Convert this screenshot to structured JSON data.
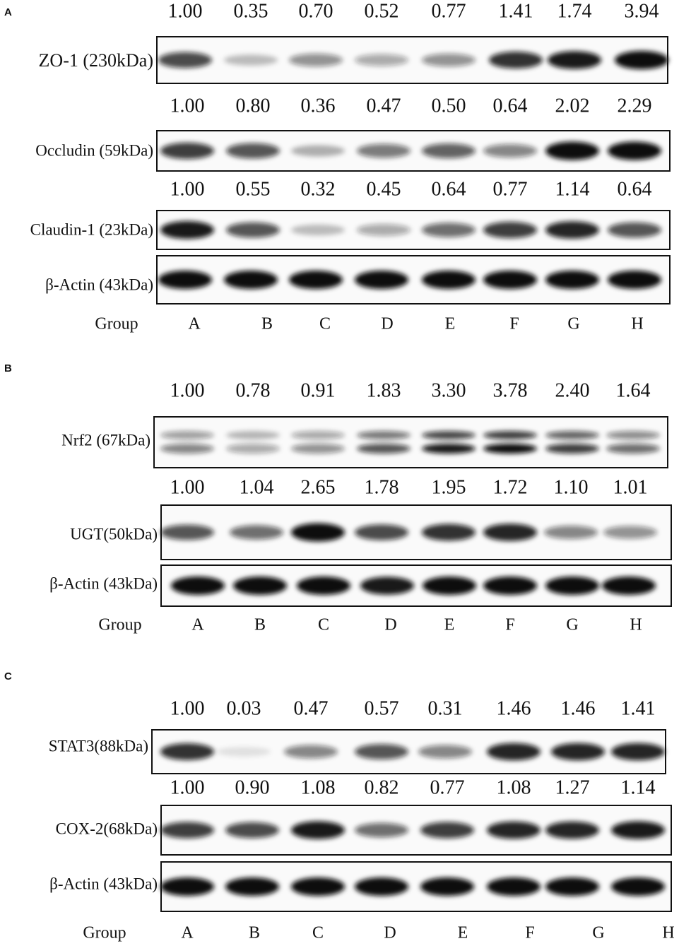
{
  "panels": [
    {
      "label": "A",
      "blots": [
        {
          "label": "ZO-1 (230kDa)",
          "values": [
            "1.00",
            "0.35",
            "0.70",
            "0.52",
            "0.77",
            "1.41",
            "1.74",
            "3.94"
          ]
        },
        {
          "label": "Occludin (59kDa)",
          "values": [
            "1.00",
            "0.80",
            "0.36",
            "0.47",
            "0.50",
            "0.64",
            "2.02",
            "2.29"
          ]
        },
        {
          "label": "Claudin-1 (23kDa)",
          "values": [
            "1.00",
            "0.55",
            "0.32",
            "0.45",
            "0.64",
            "0.77",
            "1.14",
            "0.64"
          ]
        },
        {
          "label": "β-Actin (43kDa)"
        }
      ],
      "group_label": "Group",
      "lanes": [
        "A",
        "B",
        "C",
        "D",
        "E",
        "F",
        "G",
        "H"
      ]
    },
    {
      "label": "B",
      "blots": [
        {
          "label": "Nrf2 (67kDa)",
          "values": [
            "1.00",
            "0.78",
            "0.91",
            "1.83",
            "3.30",
            "3.78",
            "2.40",
            "1.64"
          ]
        },
        {
          "label": "UGT(50kDa)",
          "values": [
            "1.00",
            "1.04",
            "2.65",
            "1.78",
            "1.95",
            "1.72",
            "1.10",
            "1.01"
          ]
        },
        {
          "label": "β-Actin (43kDa)"
        }
      ],
      "group_label": "Group",
      "lanes": [
        "A",
        "B",
        "C",
        "D",
        "E",
        "F",
        "G",
        "H"
      ]
    },
    {
      "label": "C",
      "blots": [
        {
          "label": "STAT3(88kDa)",
          "values": [
            "1.00",
            "0.03",
            "0.47",
            "0.57",
            "0.31",
            "1.46",
            "1.46",
            "1.41"
          ]
        },
        {
          "label": "COX-2(68kDa)",
          "values": [
            "1.00",
            "0.90",
            "1.08",
            "0.82",
            "0.77",
            "1.08",
            "1.27",
            "1.14"
          ]
        },
        {
          "label": "β-Actin (43kDa)"
        }
      ],
      "group_label": "Group",
      "lanes": [
        "A",
        "B",
        "C",
        "D",
        "E",
        "F",
        "G",
        "H"
      ]
    }
  ]
}
